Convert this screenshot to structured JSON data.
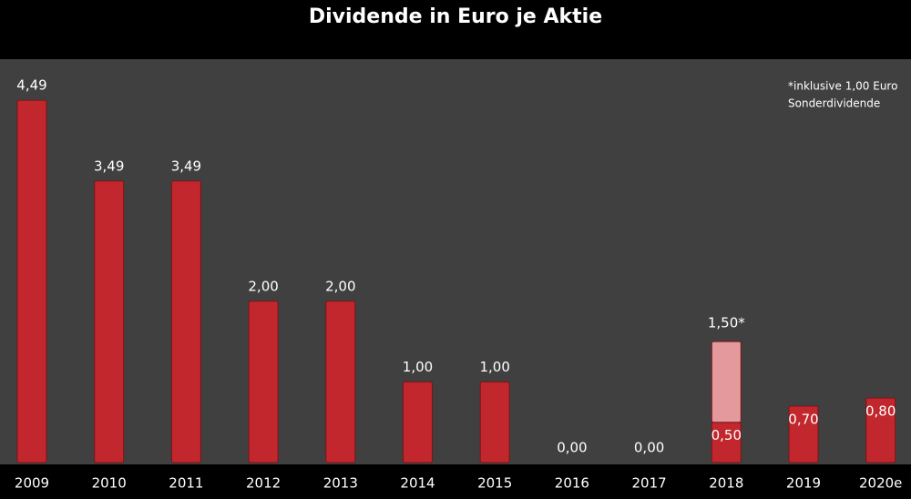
{
  "chart_data": {
    "type": "bar",
    "title": "Dividende in Euro je Aktie",
    "categories": [
      "2009",
      "2010",
      "2011",
      "2012",
      "2013",
      "2014",
      "2015",
      "2016",
      "2017",
      "2018",
      "2019",
      "2020e"
    ],
    "series": [
      {
        "color": "#c1272d",
        "values": [
          4.49,
          3.49,
          3.49,
          2.0,
          2.0,
          1.0,
          1.0,
          0.0,
          0.0,
          0.5,
          0.7,
          0.8
        ],
        "value_labels": [
          "4,49",
          "3,49",
          "3,49",
          "2,00",
          "2,00",
          "1,00",
          "1,00",
          "0,00",
          "0,00",
          "0,50",
          "0,70",
          "0,80"
        ]
      },
      {
        "color": "#e49a9d",
        "values": [
          null,
          null,
          null,
          null,
          null,
          null,
          null,
          null,
          null,
          1.0,
          null,
          null
        ]
      }
    ],
    "annotations": [
      {
        "category": "2018",
        "value": 1.5,
        "label": "1,50*"
      }
    ],
    "note": [
      "*inklusive 1,00 Euro",
      "Sonderdividende"
    ],
    "ylim": [
      0,
      5
    ]
  }
}
